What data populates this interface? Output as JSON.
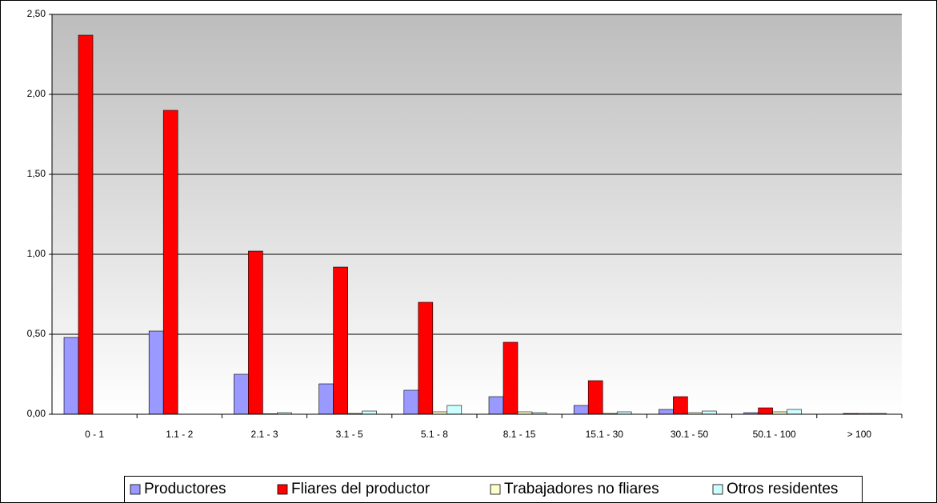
{
  "chart_data": {
    "type": "bar",
    "categories": [
      "0 - 1",
      "1.1 - 2",
      "2.1 - 3",
      "3.1 - 5",
      "5.1 - 8",
      "8.1 - 15",
      "15.1 - 30",
      "30.1 - 50",
      "50.1 - 100",
      "> 100"
    ],
    "series": [
      {
        "name": "Productores",
        "color": "#9999ff",
        "values": [
          0.48,
          0.52,
          0.25,
          0.19,
          0.15,
          0.11,
          0.055,
          0.03,
          0.01,
          0
        ]
      },
      {
        "name": "Fliares del productor",
        "color": "#ff0000",
        "values": [
          2.37,
          1.9,
          1.02,
          0.92,
          0.7,
          0.45,
          0.21,
          0.11,
          0.04,
          0.005
        ]
      },
      {
        "name": "Trabajadores no fliares",
        "color": "#ffffcc",
        "values": [
          0,
          0,
          0.003,
          0.005,
          0.015,
          0.015,
          0.005,
          0.01,
          0.015,
          0.005
        ]
      },
      {
        "name": "Otros residentes",
        "color": "#ccffff",
        "values": [
          0,
          0,
          0.01,
          0.02,
          0.055,
          0.01,
          0.015,
          0.02,
          0.03,
          0.005
        ]
      }
    ],
    "ylim": [
      0,
      2.5
    ],
    "yticks": [
      {
        "value": 0,
        "label": "0,00"
      },
      {
        "value": 0.5,
        "label": "0,50"
      },
      {
        "value": 1,
        "label": "1,00"
      },
      {
        "value": 1.5,
        "label": "1,50"
      },
      {
        "value": 2,
        "label": "2,00"
      },
      {
        "value": 2.5,
        "label": "2,50"
      }
    ],
    "grid": true,
    "legend": "bottom"
  }
}
